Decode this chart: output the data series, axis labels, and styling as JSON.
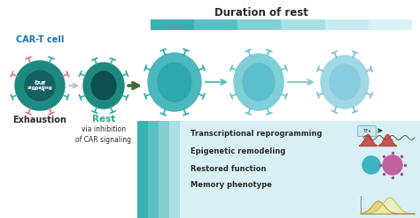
{
  "title": "Duration of rest",
  "bg_color": "#ffffff",
  "label_cart_cell": "CAR-T cell",
  "label_exhaustion": "Exhaustion",
  "label_rest": "Rest",
  "label_rest_sub": "via inhibition\nof CAR signaling",
  "bottom_labels": [
    "Transcriptional reprogramming",
    "Epigenetic remodeling",
    "Restored function",
    "Memory phenotype"
  ],
  "gradient_colors": [
    "#3aafb4",
    "#5dbfc4",
    "#82cfd4",
    "#a8dfe4",
    "#c4ecf0",
    "#d8f2f6"
  ],
  "cell_outer": [
    "#1d8a82",
    "#1d8a82",
    "#4ab8bc",
    "#80ced8",
    "#a0d8e4"
  ],
  "cell_inner": [
    "#156060",
    "#0d5050",
    "#2da8ac",
    "#5cc0cc",
    "#88cce0"
  ],
  "cell_receptor_color": [
    "#2da8ac",
    "#2da8ac",
    "#2da8ac",
    "#5cc8cc",
    "#7ac0d0"
  ],
  "pink": "#d87878",
  "arrow_col_gray": "#bbbbbb",
  "arrow_col_green": "#3a6a30",
  "arrow_col_teal": "#5abebe",
  "arrow_col_light": "#88cccc",
  "sidebar_colors": [
    "#3aafb4",
    "#5dbfc4",
    "#82cfd4",
    "#a8dfe4"
  ],
  "panel_color": "#d8f0f4",
  "font_blue": "#1a70b0",
  "font_teal": "#2aaa90",
  "font_dark": "#2a2a2a",
  "font_gray": "#404040",
  "tfs_box_color": "#c8e8ee",
  "tfs_border": "#80b8c8"
}
